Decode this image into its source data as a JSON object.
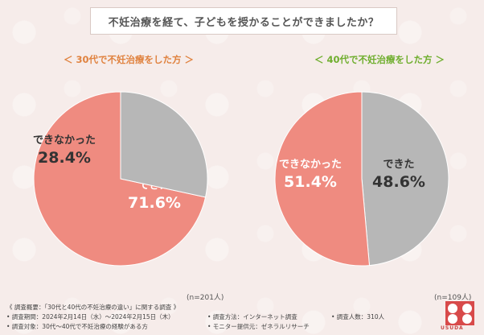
{
  "header": {
    "title": "不妊治療を経て、子どもを授かることができましたか？"
  },
  "chart_data": [
    {
      "type": "pie",
      "title": "＜ 30代で不妊治療をした方 ＞",
      "n_label": "(n=201人)",
      "slices": [
        {
          "label": "できた",
          "value": 71.6,
          "value_text": "71.6%",
          "color": "#ef8b80"
        },
        {
          "label": "できなかった",
          "value": 28.4,
          "value_text": "28.4%",
          "color": "#b7b7b7"
        }
      ]
    },
    {
      "type": "pie",
      "title": "＜ 40代で不妊治療をした方 ＞",
      "n_label": "(n=109人)",
      "slices": [
        {
          "label": "できた",
          "value": 48.6,
          "value_text": "48.6%",
          "color": "#b7b7b7"
        },
        {
          "label": "できなかった",
          "value": 51.4,
          "value_text": "51.4%",
          "color": "#ef8b80"
        }
      ]
    }
  ],
  "footer": {
    "survey": "《 調査概要：「30代と40代の不妊治療の違い」に関する調査 》",
    "period": "• 調査期間：2024年2月14日（水）～2024年2月15日（木）",
    "target": "• 調査対象：30代～40代で不妊治療の経験がある方",
    "method": "• 調査方法：インターネット調査",
    "provider": "• モニター提供元：ゼネラルリサーチ",
    "count": "• 調査人数：310人"
  },
  "logo": {
    "text": "USUDA"
  }
}
